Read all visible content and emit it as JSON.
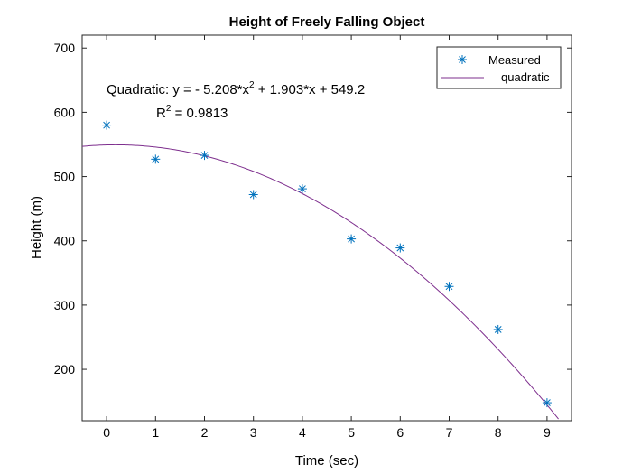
{
  "chart_data": {
    "type": "scatter",
    "title": "Height of Freely Falling Object",
    "xlabel": "Time (sec)",
    "ylabel": "Height (m)",
    "xlim": [
      -0.5,
      9.5
    ],
    "ylim": [
      120,
      720
    ],
    "x_ticks": [
      0,
      1,
      2,
      3,
      4,
      5,
      6,
      7,
      8,
      9
    ],
    "y_ticks": [
      200,
      300,
      400,
      500,
      600,
      700
    ],
    "grid": false,
    "legend_position": "top-right",
    "series": [
      {
        "name": "Measured",
        "kind": "markers",
        "marker": "asterisk",
        "color": "#0072BD",
        "x": [
          0,
          1,
          2,
          3,
          4,
          5,
          6,
          7,
          8,
          9
        ],
        "y": [
          580,
          527,
          533,
          472,
          481,
          403,
          389,
          329,
          262,
          148
        ]
      },
      {
        "name": "quadratic",
        "kind": "line",
        "color": "#7E2F8E",
        "fit": {
          "a": -5.208,
          "b": 1.903,
          "c": 549.2
        }
      }
    ],
    "annotations": {
      "equation_prefix": "Quadratic:  y = - 5.208*x",
      "equation_exp": "2",
      "equation_suffix": " + 1.903*x + 549.2",
      "r2_prefix": "R",
      "r2_exp": "2",
      "r2_suffix": " = 0.9813"
    }
  }
}
